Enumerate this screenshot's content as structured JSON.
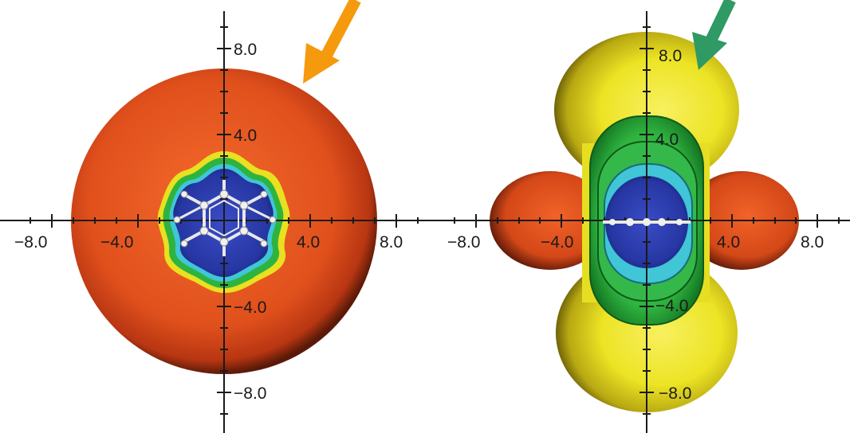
{
  "left_panel": {
    "x_tick_labels": [
      "−8.0",
      "−4.0",
      "4.0",
      "8.0"
    ],
    "y_tick_labels": [
      "8.0",
      "4.0",
      "−4.0",
      "−8.0"
    ],
    "arrow_color": "#f59a0c"
  },
  "right_panel": {
    "x_tick_labels": [
      "−8.0",
      "−4.0",
      "4.0",
      "8.0"
    ],
    "y_tick_labels": [
      "8.0",
      "4.0",
      "−4.0",
      "−8.0"
    ],
    "arrow_color": "#2f9a63"
  },
  "colors": {
    "outer_shell": "#e0501c",
    "lobe": "#e9e020",
    "green_contour": "#2fb33f",
    "cyan_contour": "#3fc6d9",
    "inner_core": "#2838a8",
    "molecule": "#e8e8e8"
  }
}
